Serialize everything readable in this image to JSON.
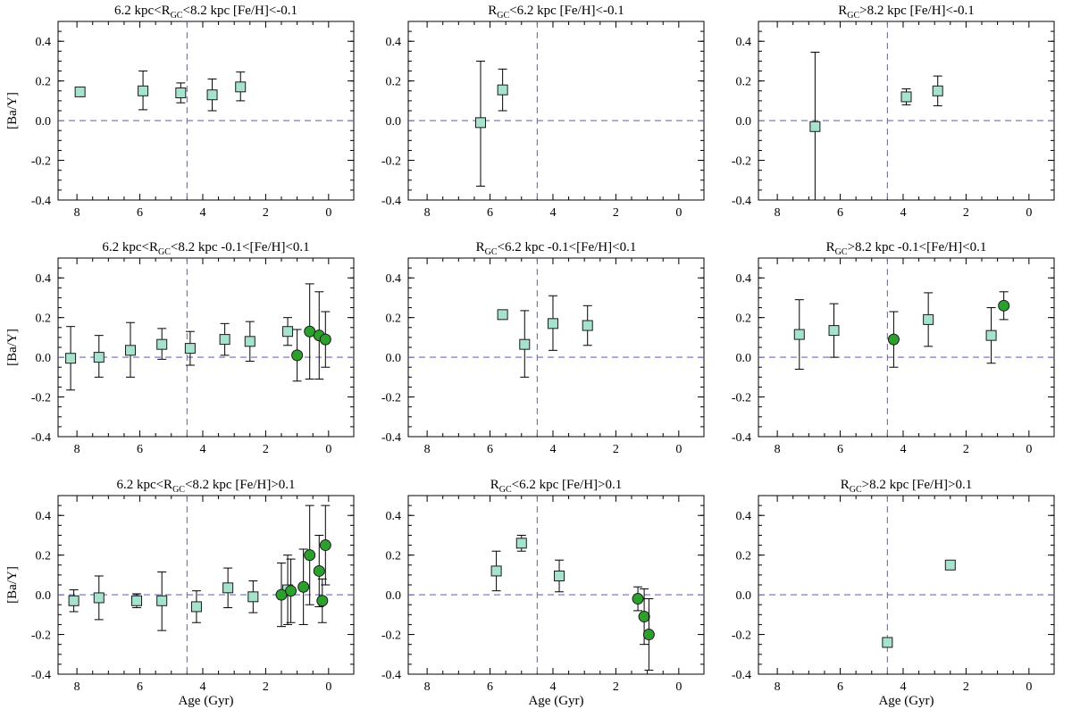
{
  "chart_data": [
    {
      "type": "scatter",
      "title": [
        "6.2 kpc<R",
        "GC",
        "<8.2 kpc [Fe/H]<-0.1"
      ],
      "ylabel": "[Ba/Y]",
      "xlabel": "",
      "xlim": [
        8.6,
        -0.8
      ],
      "ylim": [
        -0.4,
        0.5
      ],
      "xticks": [
        "8",
        "6",
        "4",
        "2",
        "0"
      ],
      "yticks": [
        "-0.4",
        "-0.2",
        "0.0",
        "0.2",
        "0.4"
      ],
      "vline": 4.5,
      "hline": 0.0,
      "series": [
        {
          "marker": "square",
          "color": "#a6e3cc",
          "points": [
            {
              "x": 7.9,
              "y": 0.145,
              "lo": 0.125,
              "hi": 0.165
            },
            {
              "x": 5.9,
              "y": 0.15,
              "lo": 0.055,
              "hi": 0.25
            },
            {
              "x": 4.7,
              "y": 0.14,
              "lo": 0.09,
              "hi": 0.19
            },
            {
              "x": 3.7,
              "y": 0.13,
              "lo": 0.05,
              "hi": 0.21
            },
            {
              "x": 2.8,
              "y": 0.17,
              "lo": 0.1,
              "hi": 0.245
            }
          ]
        },
        {
          "marker": "circle",
          "color": "#2ca02c",
          "points": []
        }
      ]
    },
    {
      "type": "scatter",
      "title": [
        "R",
        "GC",
        "<6.2 kpc [Fe/H]<-0.1"
      ],
      "ylabel": "",
      "xlabel": "",
      "xlim": [
        8.6,
        -0.8
      ],
      "ylim": [
        -0.4,
        0.5
      ],
      "xticks": [
        "8",
        "6",
        "4",
        "2",
        "0"
      ],
      "yticks": [
        "-0.4",
        "-0.2",
        "0.0",
        "0.2",
        "0.4"
      ],
      "vline": 4.5,
      "hline": 0.0,
      "series": [
        {
          "marker": "square",
          "color": "#a6e3cc",
          "points": [
            {
              "x": 6.3,
              "y": -0.01,
              "lo": -0.33,
              "hi": 0.3
            },
            {
              "x": 5.6,
              "y": 0.155,
              "lo": 0.05,
              "hi": 0.26
            }
          ]
        },
        {
          "marker": "circle",
          "color": "#2ca02c",
          "points": []
        }
      ]
    },
    {
      "type": "scatter",
      "title": [
        "R",
        "GC",
        ">8.2 kpc [Fe/H]<-0.1"
      ],
      "ylabel": "",
      "xlabel": "",
      "xlim": [
        8.6,
        -0.8
      ],
      "ylim": [
        -0.4,
        0.5
      ],
      "xticks": [
        "8",
        "6",
        "4",
        "2",
        "0"
      ],
      "yticks": [
        "-0.4",
        "-0.2",
        "0.0",
        "0.2",
        "0.4"
      ],
      "vline": 4.5,
      "hline": 0.0,
      "series": [
        {
          "marker": "square",
          "color": "#a6e3cc",
          "points": [
            {
              "x": 6.8,
              "y": -0.03,
              "lo": -0.4,
              "hi": 0.345
            },
            {
              "x": 3.9,
              "y": 0.12,
              "lo": 0.08,
              "hi": 0.16
            },
            {
              "x": 2.9,
              "y": 0.15,
              "lo": 0.075,
              "hi": 0.225
            }
          ]
        },
        {
          "marker": "circle",
          "color": "#2ca02c",
          "points": []
        }
      ]
    },
    {
      "type": "scatter",
      "title": [
        "6.2 kpc<R",
        "GC",
        "<8.2 kpc -0.1<[Fe/H]<0.1"
      ],
      "ylabel": "[Ba/Y]",
      "xlabel": "",
      "xlim": [
        8.6,
        -0.8
      ],
      "ylim": [
        -0.4,
        0.5
      ],
      "xticks": [
        "8",
        "6",
        "4",
        "2",
        "0"
      ],
      "yticks": [
        "-0.4",
        "-0.2",
        "0.0",
        "0.2",
        "0.4"
      ],
      "vline": 4.5,
      "hline": 0.0,
      "series": [
        {
          "marker": "square",
          "color": "#a6e3cc",
          "points": [
            {
              "x": 8.2,
              "y": -0.005,
              "lo": -0.165,
              "hi": 0.155
            },
            {
              "x": 7.3,
              "y": 0.0,
              "lo": -0.1,
              "hi": 0.11
            },
            {
              "x": 6.3,
              "y": 0.035,
              "lo": -0.1,
              "hi": 0.175
            },
            {
              "x": 5.3,
              "y": 0.065,
              "lo": -0.01,
              "hi": 0.145
            },
            {
              "x": 4.4,
              "y": 0.045,
              "lo": -0.04,
              "hi": 0.13
            },
            {
              "x": 3.3,
              "y": 0.09,
              "lo": 0.01,
              "hi": 0.17
            },
            {
              "x": 2.5,
              "y": 0.08,
              "lo": -0.02,
              "hi": 0.18
            },
            {
              "x": 1.3,
              "y": 0.13,
              "lo": 0.06,
              "hi": 0.2
            }
          ]
        },
        {
          "marker": "circle",
          "color": "#2ca02c",
          "points": [
            {
              "x": 1.0,
              "y": 0.01,
              "lo": -0.12,
              "hi": 0.14
            },
            {
              "x": 0.6,
              "y": 0.13,
              "lo": -0.11,
              "hi": 0.37
            },
            {
              "x": 0.3,
              "y": 0.11,
              "lo": -0.11,
              "hi": 0.33
            },
            {
              "x": 0.1,
              "y": 0.09,
              "lo": -0.05,
              "hi": 0.23
            }
          ]
        }
      ]
    },
    {
      "type": "scatter",
      "title": [
        "R",
        "GC",
        "<6.2 kpc -0.1<[Fe/H]<0.1"
      ],
      "ylabel": "",
      "xlabel": "",
      "xlim": [
        8.6,
        -0.8
      ],
      "ylim": [
        -0.4,
        0.5
      ],
      "xticks": [
        "8",
        "6",
        "4",
        "2",
        "0"
      ],
      "yticks": [
        "-0.4",
        "-0.2",
        "0.0",
        "0.2",
        "0.4"
      ],
      "vline": 4.5,
      "hline": 0.0,
      "series": [
        {
          "marker": "square",
          "color": "#a6e3cc",
          "points": [
            {
              "x": 5.6,
              "y": 0.215,
              "lo": 0.2,
              "hi": 0.23
            },
            {
              "x": 4.9,
              "y": 0.065,
              "lo": -0.1,
              "hi": 0.235
            },
            {
              "x": 4.0,
              "y": 0.17,
              "lo": 0.035,
              "hi": 0.31
            },
            {
              "x": 2.9,
              "y": 0.16,
              "lo": 0.06,
              "hi": 0.26
            }
          ]
        },
        {
          "marker": "circle",
          "color": "#2ca02c",
          "points": []
        }
      ]
    },
    {
      "type": "scatter",
      "title": [
        "R",
        "GC",
        ">8.2 kpc -0.1<[Fe/H]<0.1"
      ],
      "ylabel": "",
      "xlabel": "",
      "xlim": [
        8.6,
        -0.8
      ],
      "ylim": [
        -0.4,
        0.5
      ],
      "xticks": [
        "8",
        "6",
        "4",
        "2",
        "0"
      ],
      "yticks": [
        "-0.4",
        "-0.2",
        "0.0",
        "0.2",
        "0.4"
      ],
      "vline": 4.5,
      "hline": 0.0,
      "series": [
        {
          "marker": "square",
          "color": "#a6e3cc",
          "points": [
            {
              "x": 7.3,
              "y": 0.115,
              "lo": -0.06,
              "hi": 0.29
            },
            {
              "x": 6.2,
              "y": 0.135,
              "lo": 0.0,
              "hi": 0.27
            },
            {
              "x": 3.2,
              "y": 0.19,
              "lo": 0.055,
              "hi": 0.325
            },
            {
              "x": 1.2,
              "y": 0.11,
              "lo": -0.03,
              "hi": 0.25
            }
          ]
        },
        {
          "marker": "circle",
          "color": "#2ca02c",
          "points": [
            {
              "x": 4.3,
              "y": 0.09,
              "lo": -0.05,
              "hi": 0.23
            },
            {
              "x": 0.8,
              "y": 0.26,
              "lo": 0.19,
              "hi": 0.33
            }
          ]
        }
      ]
    },
    {
      "type": "scatter",
      "title": [
        "6.2 kpc<R",
        "GC",
        "<8.2 kpc [Fe/H]>0.1"
      ],
      "ylabel": "[Ba/Y]",
      "xlabel": "Age (Gyr)",
      "xlim": [
        8.6,
        -0.8
      ],
      "ylim": [
        -0.4,
        0.5
      ],
      "xticks": [
        "8",
        "6",
        "4",
        "2",
        "0"
      ],
      "yticks": [
        "-0.4",
        "-0.2",
        "0.0",
        "0.2",
        "0.4"
      ],
      "vline": 4.5,
      "hline": 0.0,
      "series": [
        {
          "marker": "square",
          "color": "#a6e3cc",
          "points": [
            {
              "x": 8.1,
              "y": -0.03,
              "lo": -0.085,
              "hi": 0.025
            },
            {
              "x": 7.3,
              "y": -0.015,
              "lo": -0.125,
              "hi": 0.095
            },
            {
              "x": 6.1,
              "y": -0.03,
              "lo": -0.065,
              "hi": 0.005
            },
            {
              "x": 5.3,
              "y": -0.03,
              "lo": -0.18,
              "hi": 0.115
            },
            {
              "x": 4.2,
              "y": -0.06,
              "lo": -0.14,
              "hi": 0.02
            },
            {
              "x": 3.2,
              "y": 0.035,
              "lo": -0.065,
              "hi": 0.135
            },
            {
              "x": 2.4,
              "y": -0.01,
              "lo": -0.09,
              "hi": 0.07
            },
            {
              "x": 1.3,
              "y": 0.025,
              "lo": -0.15,
              "hi": 0.2
            }
          ]
        },
        {
          "marker": "circle",
          "color": "#2ca02c",
          "points": [
            {
              "x": 1.5,
              "y": 0.0,
              "lo": -0.16,
              "hi": 0.16
            },
            {
              "x": 1.2,
              "y": 0.02,
              "lo": -0.14,
              "hi": 0.18
            },
            {
              "x": 0.8,
              "y": 0.04,
              "lo": -0.15,
              "hi": 0.23
            },
            {
              "x": 0.6,
              "y": 0.2,
              "lo": -0.05,
              "hi": 0.45
            },
            {
              "x": 0.3,
              "y": 0.12,
              "lo": -0.06,
              "hi": 0.3
            },
            {
              "x": 0.2,
              "y": -0.03,
              "lo": -0.14,
              "hi": 0.08
            },
            {
              "x": 0.1,
              "y": 0.25,
              "lo": 0.05,
              "hi": 0.45
            }
          ]
        }
      ]
    },
    {
      "type": "scatter",
      "title": [
        "R",
        "GC",
        "<6.2 kpc [Fe/H]>0.1"
      ],
      "ylabel": "",
      "xlabel": "Age (Gyr)",
      "xlim": [
        8.6,
        -0.8
      ],
      "ylim": [
        -0.4,
        0.5
      ],
      "xticks": [
        "8",
        "6",
        "4",
        "2",
        "0"
      ],
      "yticks": [
        "-0.4",
        "-0.2",
        "0.0",
        "0.2",
        "0.4"
      ],
      "vline": 4.5,
      "hline": 0.0,
      "series": [
        {
          "marker": "square",
          "color": "#a6e3cc",
          "points": [
            {
              "x": 5.8,
              "y": 0.12,
              "lo": 0.02,
              "hi": 0.22
            },
            {
              "x": 5.0,
              "y": 0.26,
              "lo": 0.22,
              "hi": 0.3
            },
            {
              "x": 3.8,
              "y": 0.095,
              "lo": 0.015,
              "hi": 0.175
            }
          ]
        },
        {
          "marker": "circle",
          "color": "#2ca02c",
          "points": [
            {
              "x": 1.3,
              "y": -0.02,
              "lo": -0.08,
              "hi": 0.04
            },
            {
              "x": 1.1,
              "y": -0.11,
              "lo": -0.25,
              "hi": 0.03
            },
            {
              "x": 0.95,
              "y": -0.2,
              "lo": -0.38,
              "hi": -0.02
            }
          ]
        }
      ]
    },
    {
      "type": "scatter",
      "title": [
        "R",
        "GC",
        ">8.2 kpc [Fe/H]>0.1"
      ],
      "ylabel": "",
      "xlabel": "Age (Gyr)",
      "xlim": [
        8.6,
        -0.8
      ],
      "ylim": [
        -0.4,
        0.5
      ],
      "xticks": [
        "8",
        "6",
        "4",
        "2",
        "0"
      ],
      "yticks": [
        "-0.4",
        "-0.2",
        "0.0",
        "0.2",
        "0.4"
      ],
      "vline": 4.5,
      "hline": 0.0,
      "series": [
        {
          "marker": "square",
          "color": "#a6e3cc",
          "points": [
            {
              "x": 4.5,
              "y": -0.24,
              "lo": -0.24,
              "hi": -0.24
            },
            {
              "x": 2.5,
              "y": 0.15,
              "lo": 0.15,
              "hi": 0.15
            }
          ]
        },
        {
          "marker": "circle",
          "color": "#2ca02c",
          "points": []
        }
      ]
    }
  ]
}
